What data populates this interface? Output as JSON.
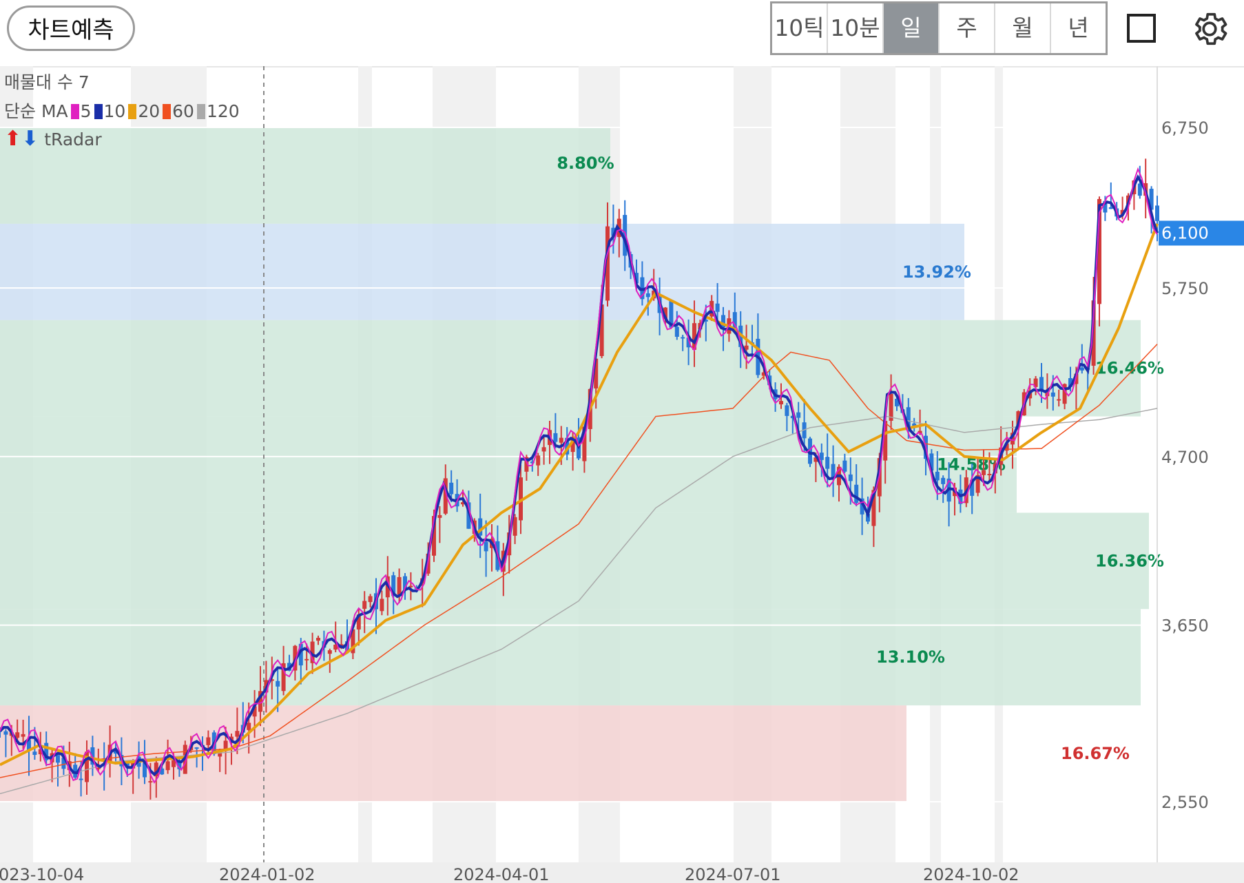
{
  "toolbar": {
    "predict_label": "차트예측",
    "periods": [
      "10틱",
      "10분",
      "일",
      "주",
      "월",
      "년"
    ],
    "active_period": "일"
  },
  "legend": {
    "volume_profile": "매물대 수 7",
    "ma_label": "단순 MA",
    "ma": [
      {
        "period": "5",
        "color": "#e020c0"
      },
      {
        "period": "10",
        "color": "#1a2ea8"
      },
      {
        "period": "20",
        "color": "#e8a010"
      },
      {
        "period": "60",
        "color": "#f05020"
      },
      {
        "period": "120",
        "color": "#aaaaaa"
      }
    ],
    "radar_label": "tRadar"
  },
  "chart_data": {
    "type": "candlestick",
    "y_ticks": [
      2550,
      3650,
      4700,
      5750,
      6750
    ],
    "ylim": [
      2250,
      7100
    ],
    "x_ticks": [
      "023-10-04",
      "2024-01-02",
      "2024-04-01",
      "2024-07-01",
      "2024-10-02"
    ],
    "current_price": "6,100",
    "volume_bands": [
      {
        "from": 2550,
        "to": 3150,
        "pct": "16.67%",
        "color": "pink"
      },
      {
        "from": 3150,
        "to": 3750,
        "pct": "13.10%",
        "color": "green"
      },
      {
        "from": 3750,
        "to": 4350,
        "pct": "16.36%",
        "color": "green"
      },
      {
        "from": 4350,
        "to": 4950,
        "pct": "14.58%",
        "color": "green"
      },
      {
        "from": 4950,
        "to": 5550,
        "pct": "16.46%",
        "color": "green"
      },
      {
        "from": 5550,
        "to": 6150,
        "pct": "13.92%",
        "color": "blue"
      },
      {
        "from": 6150,
        "to": 6750,
        "pct": "8.80%",
        "color": "green"
      }
    ],
    "close_path": [
      [
        0,
        2990
      ],
      [
        10,
        2950
      ],
      [
        20,
        2900
      ],
      [
        30,
        2820
      ],
      [
        40,
        2760
      ],
      [
        50,
        2800
      ],
      [
        60,
        2840
      ],
      [
        70,
        2780
      ],
      [
        80,
        2760
      ],
      [
        90,
        2810
      ],
      [
        100,
        2880
      ],
      [
        110,
        2920
      ],
      [
        120,
        2950
      ],
      [
        125,
        2970
      ],
      [
        130,
        3060
      ],
      [
        135,
        3250
      ],
      [
        140,
        3300
      ],
      [
        150,
        3420
      ],
      [
        160,
        3480
      ],
      [
        170,
        3520
      ],
      [
        180,
        3560
      ],
      [
        190,
        3750
      ],
      [
        200,
        3880
      ],
      [
        210,
        3860
      ],
      [
        215,
        3820
      ],
      [
        220,
        4000
      ],
      [
        230,
        4520
      ],
      [
        240,
        4400
      ],
      [
        250,
        4200
      ],
      [
        260,
        4050
      ],
      [
        265,
        4250
      ],
      [
        270,
        4650
      ],
      [
        280,
        4790
      ],
      [
        290,
        4800
      ],
      [
        300,
        4760
      ],
      [
        305,
        5000
      ],
      [
        310,
        5400
      ],
      [
        315,
        6050
      ],
      [
        320,
        6150
      ],
      [
        330,
        5800
      ],
      [
        340,
        5700
      ],
      [
        350,
        5500
      ],
      [
        360,
        5450
      ],
      [
        370,
        5600
      ],
      [
        380,
        5450
      ],
      [
        390,
        5350
      ],
      [
        400,
        5150
      ],
      [
        410,
        5000
      ],
      [
        420,
        4700
      ],
      [
        430,
        4600
      ],
      [
        440,
        4500
      ],
      [
        445,
        4480
      ],
      [
        450,
        4300
      ],
      [
        455,
        4550
      ],
      [
        460,
        5100
      ],
      [
        465,
        5050
      ],
      [
        470,
        4950
      ],
      [
        480,
        4700
      ],
      [
        490,
        4450
      ],
      [
        500,
        4500
      ],
      [
        510,
        4550
      ],
      [
        515,
        4600
      ],
      [
        520,
        4700
      ],
      [
        530,
        5000
      ],
      [
        540,
        5150
      ],
      [
        550,
        5100
      ],
      [
        560,
        5250
      ],
      [
        565,
        5200
      ],
      [
        570,
        6300
      ],
      [
        580,
        6200
      ],
      [
        590,
        6400
      ],
      [
        595,
        6350
      ],
      [
        600,
        6100
      ]
    ],
    "ma20_path": [
      [
        0,
        2780
      ],
      [
        20,
        2900
      ],
      [
        40,
        2840
      ],
      [
        60,
        2790
      ],
      [
        80,
        2810
      ],
      [
        100,
        2830
      ],
      [
        120,
        2880
      ],
      [
        140,
        3100
      ],
      [
        160,
        3350
      ],
      [
        180,
        3480
      ],
      [
        200,
        3680
      ],
      [
        220,
        3780
      ],
      [
        240,
        4150
      ],
      [
        260,
        4350
      ],
      [
        280,
        4500
      ],
      [
        300,
        4850
      ],
      [
        320,
        5350
      ],
      [
        340,
        5720
      ],
      [
        360,
        5600
      ],
      [
        380,
        5500
      ],
      [
        400,
        5300
      ],
      [
        420,
        5000
      ],
      [
        440,
        4730
      ],
      [
        460,
        4850
      ],
      [
        480,
        4900
      ],
      [
        500,
        4700
      ],
      [
        520,
        4680
      ],
      [
        540,
        4850
      ],
      [
        560,
        5000
      ],
      [
        580,
        5500
      ],
      [
        600,
        6150
      ]
    ],
    "ma60_path": [
      [
        0,
        2700
      ],
      [
        40,
        2800
      ],
      [
        80,
        2850
      ],
      [
        120,
        2880
      ],
      [
        140,
        2960
      ],
      [
        180,
        3300
      ],
      [
        220,
        3650
      ],
      [
        260,
        3950
      ],
      [
        300,
        4280
      ],
      [
        340,
        4950
      ],
      [
        380,
        5000
      ],
      [
        400,
        5250
      ],
      [
        410,
        5350
      ],
      [
        430,
        5300
      ],
      [
        450,
        5000
      ],
      [
        470,
        4800
      ],
      [
        500,
        4740
      ],
      [
        540,
        4750
      ],
      [
        570,
        5020
      ],
      [
        600,
        5400
      ]
    ],
    "ma120_path": [
      [
        0,
        2600
      ],
      [
        60,
        2800
      ],
      [
        120,
        2860
      ],
      [
        180,
        3100
      ],
      [
        220,
        3300
      ],
      [
        260,
        3500
      ],
      [
        300,
        3800
      ],
      [
        340,
        4380
      ],
      [
        380,
        4700
      ],
      [
        420,
        4880
      ],
      [
        460,
        4950
      ],
      [
        500,
        4850
      ],
      [
        540,
        4900
      ],
      [
        570,
        4930
      ],
      [
        600,
        5000
      ]
    ],
    "high_marks": [
      {
        "x": 304,
        "price": 6500,
        "label": "8.80%"
      }
    ]
  }
}
